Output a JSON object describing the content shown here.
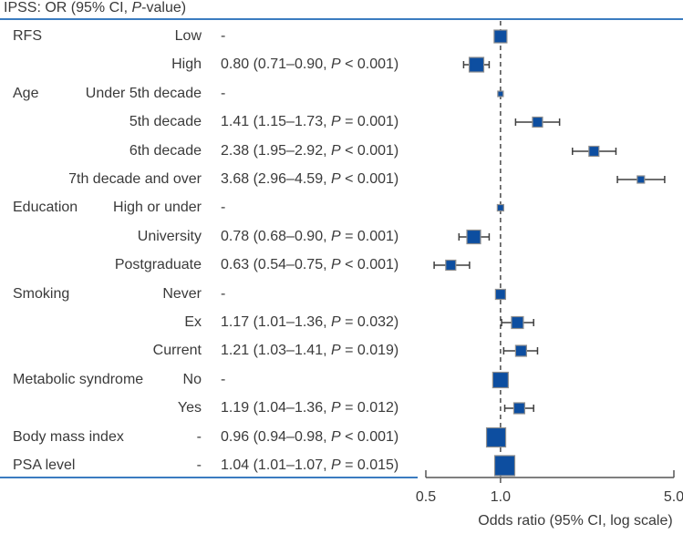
{
  "title": {
    "pre": "IPSS: OR (95% CI, ",
    "p": "P",
    "post": "-value)"
  },
  "axis": {
    "label": "Odds ratio (95% CI, log scale)",
    "tick_labels": [
      "0.5",
      "1.0",
      "5.0"
    ]
  },
  "colors": {
    "accent_rule": "#3b7cc0",
    "marker_fill": "#0d4ea0",
    "marker_stroke": "#8f8f8f",
    "whisker": "#3f3f3f",
    "dashed_line": "#4a4a4a",
    "axis_line": "#555555",
    "text": "#3a3a3a"
  },
  "chart_data": {
    "type": "forest",
    "title": "IPSS: OR (95% CI, P-value)",
    "xlabel": "Odds ratio (95% CI, log scale)",
    "x_scale": "log",
    "xlim": [
      0.5,
      5.0
    ],
    "x_ticks": [
      0.5,
      1.0,
      5.0
    ],
    "reference_line": 1.0,
    "rows": [
      {
        "group_label": "RFS",
        "level": "Low",
        "reference": true,
        "or": 1.0,
        "marker_size": 14,
        "value_pre": "-",
        "value_p": "",
        "value_post": ""
      },
      {
        "group_label": "",
        "level": "High",
        "reference": false,
        "or": 0.8,
        "ci_low": 0.71,
        "ci_high": 0.9,
        "p": "< 0.001",
        "marker_size": 16,
        "value_pre": "0.80 (0.71–0.90, ",
        "value_p": "P",
        "value_post": " < 0.001)"
      },
      {
        "group_label": "Age",
        "level": "Under 5th decade",
        "reference": true,
        "or": 1.0,
        "marker_size": 6,
        "value_pre": "-",
        "value_p": "",
        "value_post": ""
      },
      {
        "group_label": "",
        "level": "5th decade",
        "reference": false,
        "or": 1.41,
        "ci_low": 1.15,
        "ci_high": 1.73,
        "p": "= 0.001",
        "marker_size": 11,
        "value_pre": "1.41 (1.15–1.73, ",
        "value_p": "P",
        "value_post": " = 0.001)"
      },
      {
        "group_label": "",
        "level": "6th decade",
        "reference": false,
        "or": 2.38,
        "ci_low": 1.95,
        "ci_high": 2.92,
        "p": "< 0.001",
        "marker_size": 11,
        "value_pre": "2.38 (1.95–2.92, ",
        "value_p": "P",
        "value_post": " < 0.001)"
      },
      {
        "group_label": "",
        "level": "7th decade and over",
        "reference": false,
        "or": 3.68,
        "ci_low": 2.96,
        "ci_high": 4.59,
        "p": "< 0.001",
        "marker_size": 8,
        "value_pre": "3.68 (2.96–4.59, ",
        "value_p": "P",
        "value_post": " < 0.001)"
      },
      {
        "group_label": "Education",
        "level": "High or under",
        "reference": true,
        "or": 1.0,
        "marker_size": 7,
        "value_pre": "-",
        "value_p": "",
        "value_post": ""
      },
      {
        "group_label": "",
        "level": "University",
        "reference": false,
        "or": 0.78,
        "ci_low": 0.68,
        "ci_high": 0.9,
        "p": "= 0.001",
        "marker_size": 15,
        "value_pre": "0.78 (0.68–0.90, ",
        "value_p": "P",
        "value_post": " = 0.001)"
      },
      {
        "group_label": "",
        "level": "Postgraduate",
        "reference": false,
        "or": 0.63,
        "ci_low": 0.54,
        "ci_high": 0.75,
        "p": "< 0.001",
        "marker_size": 11,
        "value_pre": "0.63 (0.54–0.75, ",
        "value_p": "P",
        "value_post": " < 0.001)"
      },
      {
        "group_label": "Smoking",
        "level": "Never",
        "reference": true,
        "or": 1.0,
        "marker_size": 11,
        "value_pre": "-",
        "value_p": "",
        "value_post": ""
      },
      {
        "group_label": "",
        "level": "Ex",
        "reference": false,
        "or": 1.17,
        "ci_low": 1.01,
        "ci_high": 1.36,
        "p": "= 0.032",
        "marker_size": 13,
        "value_pre": "1.17 (1.01–1.36, ",
        "value_p": "P",
        "value_post": " = 0.032)"
      },
      {
        "group_label": "",
        "level": "Current",
        "reference": false,
        "or": 1.21,
        "ci_low": 1.03,
        "ci_high": 1.41,
        "p": "= 0.019",
        "marker_size": 12,
        "value_pre": "1.21 (1.03–1.41, ",
        "value_p": "P",
        "value_post": " = 0.019)"
      },
      {
        "group_label": "Metabolic syndrome",
        "level": "No",
        "reference": true,
        "or": 1.0,
        "marker_size": 17,
        "value_pre": "-",
        "value_p": "",
        "value_post": ""
      },
      {
        "group_label": "",
        "level": "Yes",
        "reference": false,
        "or": 1.19,
        "ci_low": 1.04,
        "ci_high": 1.36,
        "p": "= 0.012",
        "marker_size": 12,
        "value_pre": "1.19 (1.04–1.36, ",
        "value_p": "P",
        "value_post": " = 0.012)"
      },
      {
        "group_label": "Body mass index",
        "level": "-",
        "reference": false,
        "or": 0.96,
        "ci_low": 0.94,
        "ci_high": 0.98,
        "p": "< 0.001",
        "marker_size": 21,
        "value_pre": "0.96 (0.94–0.98, ",
        "value_p": "P",
        "value_post": " < 0.001)"
      },
      {
        "group_label": "PSA level",
        "level": "-",
        "reference": false,
        "or": 1.04,
        "ci_low": 1.01,
        "ci_high": 1.07,
        "p": "= 0.015",
        "marker_size": 22,
        "value_pre": "1.04 (1.01–1.07, ",
        "value_p": "P",
        "value_post": " = 0.015)"
      }
    ]
  }
}
